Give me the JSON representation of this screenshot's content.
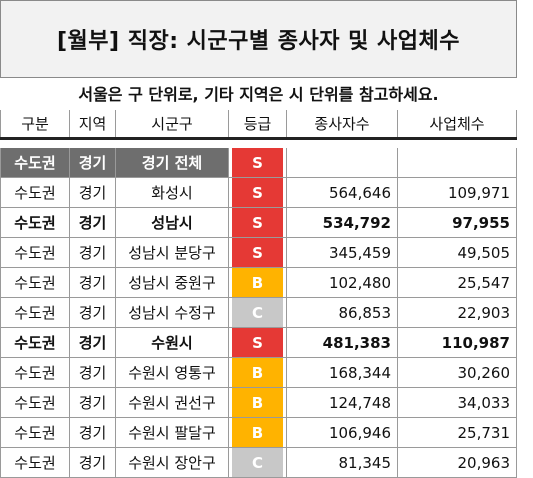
{
  "title": "[월부] 직장: 시군구별 종사자 및 사업체수",
  "subtitle": "서울은 구 단위로, 기타 지역은 시 단위를 참고하세요.",
  "headers": [
    "구분",
    "지역",
    "시군구",
    "등급",
    "종사자수",
    "사업체수"
  ],
  "grade_colors": {
    "S": "#e53935",
    "B": "#ffb300",
    "C": "#c8c8c8"
  },
  "rows": [
    {
      "type": "total",
      "c0": "수도권",
      "c1": "경기",
      "c2": "경기 전체",
      "grade": "S",
      "workers": "",
      "businesses": ""
    },
    {
      "type": "normal",
      "c0": "수도권",
      "c1": "경기",
      "c2": "화성시",
      "grade": "S",
      "workers": "564,646",
      "businesses": "109,971"
    },
    {
      "type": "bold",
      "c0": "수도권",
      "c1": "경기",
      "c2": "성남시",
      "grade": "S",
      "workers": "534,792",
      "businesses": "97,955"
    },
    {
      "type": "normal",
      "c0": "수도권",
      "c1": "경기",
      "c2": "성남시 분당구",
      "grade": "S",
      "workers": "345,459",
      "businesses": "49,505"
    },
    {
      "type": "normal",
      "c0": "수도권",
      "c1": "경기",
      "c2": "성남시 중원구",
      "grade": "B",
      "workers": "102,480",
      "businesses": "25,547"
    },
    {
      "type": "normal",
      "c0": "수도권",
      "c1": "경기",
      "c2": "성남시 수정구",
      "grade": "C",
      "workers": "86,853",
      "businesses": "22,903"
    },
    {
      "type": "bold",
      "c0": "수도권",
      "c1": "경기",
      "c2": "수원시",
      "grade": "S",
      "workers": "481,383",
      "businesses": "110,987"
    },
    {
      "type": "normal",
      "c0": "수도권",
      "c1": "경기",
      "c2": "수원시 영통구",
      "grade": "B",
      "workers": "168,344",
      "businesses": "30,260"
    },
    {
      "type": "normal",
      "c0": "수도권",
      "c1": "경기",
      "c2": "수원시 권선구",
      "grade": "B",
      "workers": "124,748",
      "businesses": "34,033"
    },
    {
      "type": "normal",
      "c0": "수도권",
      "c1": "경기",
      "c2": "수원시 팔달구",
      "grade": "B",
      "workers": "106,946",
      "businesses": "25,731"
    },
    {
      "type": "normal",
      "c0": "수도권",
      "c1": "경기",
      "c2": "수원시 장안구",
      "grade": "C",
      "workers": "81,345",
      "businesses": "20,963"
    }
  ]
}
